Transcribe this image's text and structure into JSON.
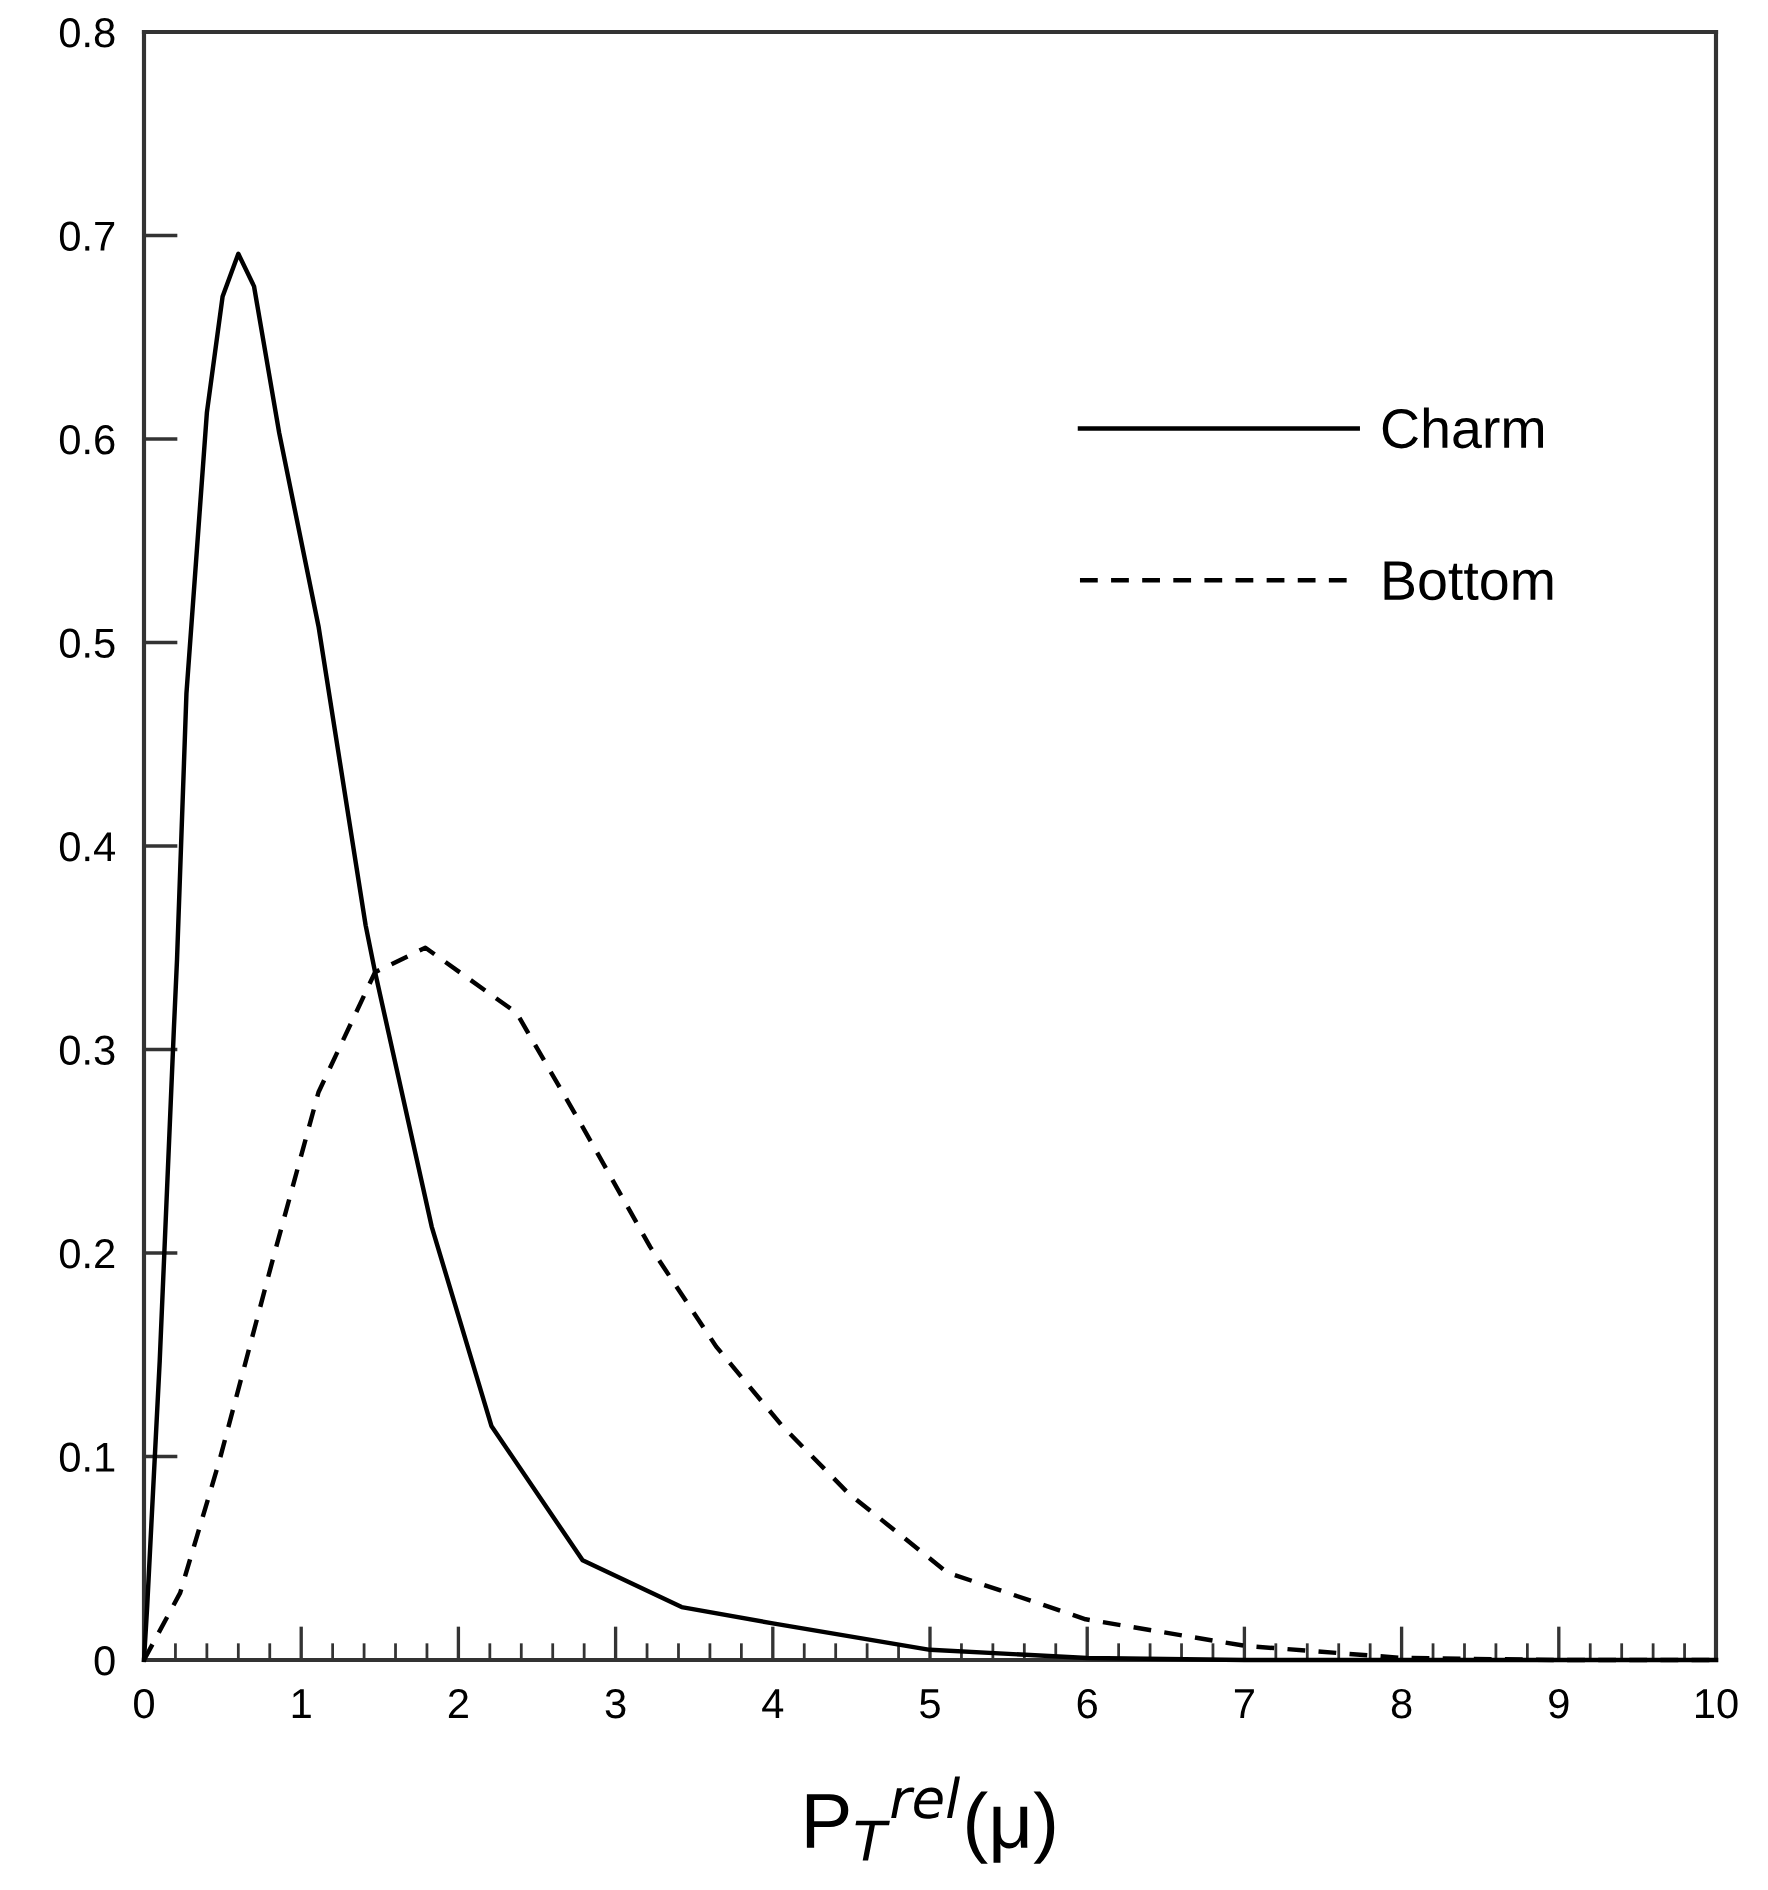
{
  "chart_data": {
    "type": "line",
    "xlabel": "P$_{T}$$^{rel}$(μ)",
    "xlim": [
      0,
      10
    ],
    "ylim": [
      0,
      0.8
    ],
    "xticks": [
      0,
      1,
      2,
      3,
      4,
      5,
      6,
      7,
      8,
      9,
      10
    ],
    "yticks": [
      0,
      0.1,
      0.2,
      0.3,
      0.4,
      0.5,
      0.6,
      0.7,
      0.8
    ],
    "grid": false,
    "legend": "top right",
    "marker": "none",
    "series": [
      {
        "name": "Charm",
        "color": "#000000",
        "line_style": "solid",
        "x": [
          0,
          0.02,
          0.1,
          0.19,
          0.21,
          0.27,
          0.4,
          0.5,
          0.6,
          0.7,
          0.86,
          1.11,
          1.41,
          1.47,
          1.83,
          2.21,
          2.79,
          3.42,
          4,
          5,
          6,
          7,
          8,
          9,
          10
        ],
        "values": [
          0,
          0.026,
          0.147,
          0.31,
          0.344,
          0.475,
          0.613,
          0.67,
          0.691,
          0.675,
          0.603,
          0.508,
          0.361,
          0.338,
          0.213,
          0.115,
          0.049,
          0.026,
          0.018,
          0.005,
          0.001,
          0,
          0,
          0,
          0
        ]
      },
      {
        "name": "Bottom",
        "color": "#000000",
        "line_style": "dashed",
        "x": [
          0,
          0.23,
          0.48,
          0.82,
          1.11,
          1.47,
          1.79,
          2.37,
          2.79,
          3.22,
          3.64,
          4.06,
          4.48,
          5.11,
          5.99,
          7,
          8,
          9,
          10
        ],
        "values": [
          0,
          0.033,
          0.098,
          0.197,
          0.279,
          0.338,
          0.35,
          0.318,
          0.262,
          0.203,
          0.154,
          0.115,
          0.082,
          0.043,
          0.02,
          0.007,
          0.001,
          0,
          0
        ]
      }
    ]
  }
}
